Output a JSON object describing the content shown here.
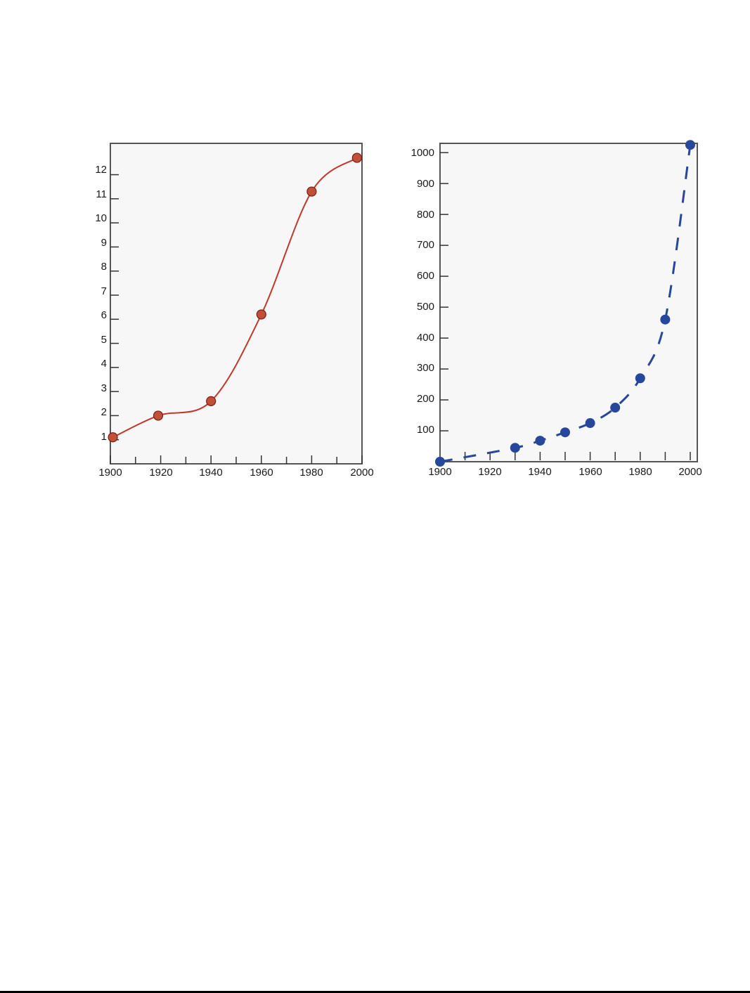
{
  "chart_data": [
    {
      "type": "line",
      "title": "",
      "xlabel": "",
      "ylabel": "",
      "x_ticks": [
        "1900",
        "1920",
        "1940",
        "1960",
        "1980",
        "2000"
      ],
      "y_ticks": [
        "1",
        "2",
        "3",
        "4",
        "5",
        "6",
        "7",
        "8",
        "9",
        "10",
        "11",
        "12"
      ],
      "xlim": [
        1900,
        2000
      ],
      "ylim": [
        0,
        13.3
      ],
      "grid": false,
      "series": [
        {
          "x": [
            1901,
            1919,
            1940,
            1960,
            1980,
            1998
          ],
          "y": [
            1.1,
            2.0,
            2.6,
            6.2,
            11.3,
            12.7
          ],
          "color": "#c0392b",
          "line_style": "solid-smooth",
          "marker_fill": "#c0503a"
        }
      ]
    },
    {
      "type": "scatter",
      "title": "",
      "xlabel": "",
      "ylabel": "",
      "x_ticks": [
        "1900",
        "1920",
        "1940",
        "1960",
        "1980",
        "2000"
      ],
      "y_ticks": [
        "100",
        "200",
        "300",
        "400",
        "500",
        "600",
        "700",
        "800",
        "900",
        "1000"
      ],
      "xlim": [
        1900,
        2000
      ],
      "ylim": [
        0,
        1030
      ],
      "grid": false,
      "series": [
        {
          "x": [
            1900,
            1930,
            1940,
            1950,
            1960,
            1970,
            1980,
            1990,
            2000
          ],
          "y": [
            0,
            45,
            68,
            95,
            125,
            175,
            270,
            460,
            1025
          ],
          "color": "#27479a",
          "line_style": "dashed"
        }
      ]
    }
  ]
}
